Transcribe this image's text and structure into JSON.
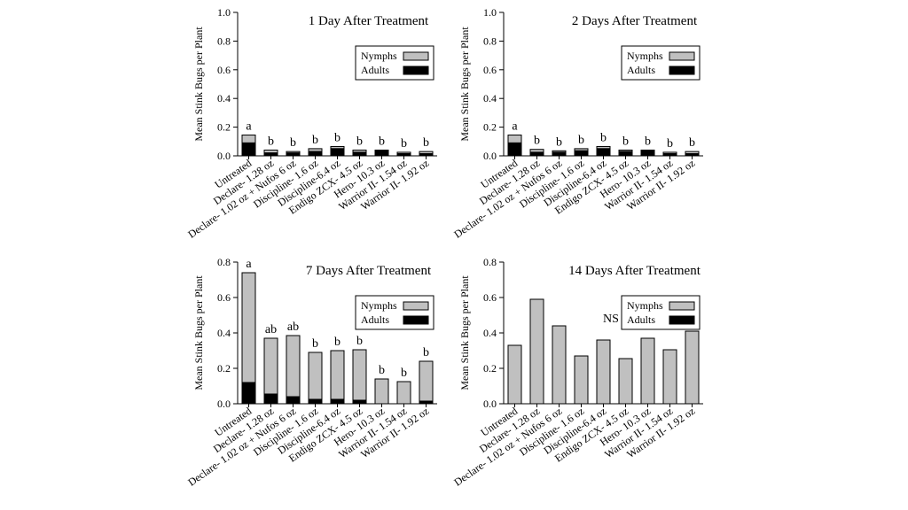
{
  "legend": {
    "nymphs": "Nymphs",
    "adults": "Adults"
  },
  "colors": {
    "nymphs": "#c0c0c0",
    "adults": "#000000",
    "axis": "#000000"
  },
  "chart_data": [
    {
      "type": "bar",
      "stacked": true,
      "title": "1 Day After Treatment",
      "ylabel": "Mean Stink Bugs per Plant",
      "xlabel": "",
      "ylim": [
        0,
        1.0
      ],
      "yticks": [
        "0.0",
        "0.2",
        "0.4",
        "0.6",
        "0.8",
        "1.0"
      ],
      "legend_position": "top-right",
      "categories": [
        "Untreated",
        "Declare- 1.28 oz",
        "Declare- 1.02 oz + Nufos 6 oz",
        "Discipline- 1.6 oz",
        "Discipline-6.4 oz",
        "Endigo ZCX- 4.5 oz",
        "Hero- 10.3 oz",
        "Warrior II- 1.54 oz",
        "Warrior II- 1.92 oz"
      ],
      "series": [
        {
          "name": "Adults",
          "values": [
            0.09,
            0.02,
            0.02,
            0.03,
            0.05,
            0.025,
            0.035,
            0.015,
            0.015
          ]
        },
        {
          "name": "Nymphs",
          "values": [
            0.055,
            0.02,
            0.01,
            0.02,
            0.015,
            0.015,
            0.005,
            0.01,
            0.015
          ]
        }
      ],
      "letters": [
        "a",
        "b",
        "b",
        "b",
        "b",
        "b",
        "b",
        "b",
        "b"
      ],
      "annotation": ""
    },
    {
      "type": "bar",
      "stacked": true,
      "title": "2 Days After Treatment",
      "ylabel": "Mean Stink Bugs per Plant",
      "xlabel": "",
      "ylim": [
        0,
        1.0
      ],
      "yticks": [
        "0.0",
        "0.2",
        "0.4",
        "0.6",
        "0.8",
        "1.0"
      ],
      "legend_position": "top-right",
      "categories": [
        "Untreated",
        "Declare- 1.28 oz",
        "Declare- 1.02 oz + Nufos 6 oz",
        "Discipline- 1.6 oz",
        "Discipline-6.4 oz",
        "Endigo ZCX- 4.5 oz",
        "Hero- 10.3 oz",
        "Warrior II- 1.54 oz",
        "Warrior II- 1.92 oz"
      ],
      "series": [
        {
          "name": "Adults",
          "values": [
            0.09,
            0.025,
            0.025,
            0.035,
            0.05,
            0.03,
            0.035,
            0.015,
            0.015
          ]
        },
        {
          "name": "Nymphs",
          "values": [
            0.055,
            0.02,
            0.01,
            0.015,
            0.015,
            0.01,
            0.005,
            0.01,
            0.015
          ]
        }
      ],
      "letters": [
        "a",
        "b",
        "b",
        "b",
        "b",
        "b",
        "b",
        "b",
        "b"
      ],
      "annotation": ""
    },
    {
      "type": "bar",
      "stacked": true,
      "title": "7 Days After Treatment",
      "ylabel": "Mean Stink Bugs per Plant",
      "xlabel": "",
      "ylim": [
        0,
        0.8
      ],
      "yticks": [
        "0.0",
        "0.2",
        "0.4",
        "0.6",
        "0.8"
      ],
      "legend_position": "top-right",
      "categories": [
        "Untreated",
        "Declare- 1.28 oz",
        "Declare- 1.02 oz + Nufos 6 oz",
        "Discipline- 1.6 oz",
        "Discipline-6.4 oz",
        "Endigo ZCX- 4.5 oz",
        "Hero- 10.3 oz",
        "Warrior II- 1.54 oz",
        "Warrior II- 1.92 oz"
      ],
      "series": [
        {
          "name": "Adults",
          "values": [
            0.12,
            0.055,
            0.04,
            0.025,
            0.025,
            0.02,
            0.0,
            0.0,
            0.015
          ]
        },
        {
          "name": "Nymphs",
          "values": [
            0.62,
            0.315,
            0.345,
            0.265,
            0.275,
            0.285,
            0.14,
            0.125,
            0.225
          ]
        }
      ],
      "letters": [
        "a",
        "ab",
        "ab",
        "b",
        "b",
        "b",
        "b",
        "b",
        "b"
      ],
      "annotation": ""
    },
    {
      "type": "bar",
      "stacked": true,
      "title": "14 Days After Treatment",
      "ylabel": "Mean Stink Bugs per Plant",
      "xlabel": "",
      "ylim": [
        0,
        0.8
      ],
      "yticks": [
        "0.0",
        "0.2",
        "0.4",
        "0.6",
        "0.8"
      ],
      "legend_position": "top-right",
      "categories": [
        "Untreated",
        "Declare- 1.28 oz",
        "Declare- 1.02 oz + Nufos 6 oz",
        "Discipline- 1.6 oz",
        "Discipline-6.4 oz",
        "Endigo ZCX- 4.5 oz",
        "Hero- 10.3 oz",
        "Warrior II- 1.54 oz",
        "Warrior II- 1.92 oz"
      ],
      "series": [
        {
          "name": "Adults",
          "values": [
            0,
            0,
            0,
            0,
            0,
            0,
            0,
            0,
            0
          ]
        },
        {
          "name": "Nymphs",
          "values": [
            0.33,
            0.59,
            0.44,
            0.27,
            0.36,
            0.255,
            0.37,
            0.305,
            0.41
          ]
        }
      ],
      "letters": [
        "",
        "",
        "",
        "",
        "",
        "",
        "",
        "",
        ""
      ],
      "annotation": "NS"
    }
  ]
}
